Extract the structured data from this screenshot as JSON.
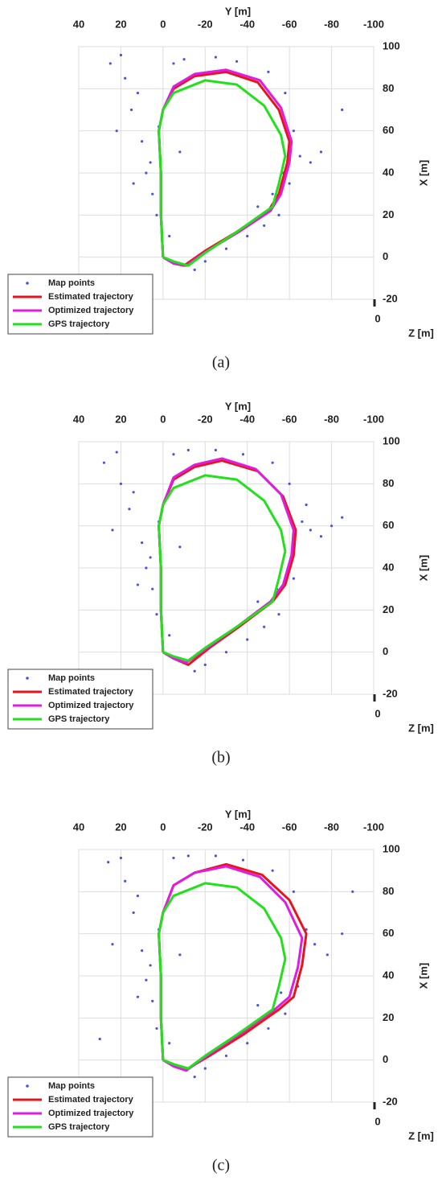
{
  "chart_data": [
    {
      "type": "line",
      "caption": "(a)",
      "xlabel": "Y [m]",
      "ylabel": "X [m]",
      "zlabel": "Z [m]",
      "xlim": [
        40,
        -100
      ],
      "xticks": [
        40,
        20,
        0,
        -20,
        -40,
        -60,
        -80,
        -100
      ],
      "ylim": [
        -20,
        100
      ],
      "yticks": [
        -20,
        0,
        20,
        40,
        60,
        80,
        100
      ],
      "zticks": [
        0
      ],
      "grid": true,
      "legend": "lower left",
      "series": [
        {
          "name": "Map points",
          "type": "scatter",
          "color": "#4a55d6",
          "x": [
            25,
            18,
            15,
            10,
            8,
            5,
            3,
            12,
            20,
            -5,
            -10,
            -25,
            -35,
            -50,
            -58,
            -62,
            -65,
            -70,
            -60,
            -55,
            -48,
            -40,
            -30,
            -20,
            -15,
            -8,
            2,
            6,
            -45,
            -75,
            -85,
            22,
            14,
            -3,
            -52,
            -57
          ],
          "values": [
            92,
            85,
            70,
            55,
            40,
            30,
            20,
            78,
            96,
            92,
            94,
            95,
            93,
            88,
            78,
            60,
            48,
            45,
            35,
            20,
            15,
            10,
            4,
            -2,
            -6,
            50,
            62,
            45,
            24,
            50,
            70,
            60,
            35,
            10,
            30,
            40
          ]
        },
        {
          "name": "Estimated trajectory",
          "type": "line",
          "color": "#e8141c",
          "x": [
            0,
            1,
            1,
            2,
            0,
            -5,
            -15,
            -30,
            -45,
            -55,
            -60,
            -59,
            -55,
            -50,
            -35,
            -20,
            -10,
            -5,
            0
          ],
          "values": [
            0,
            20,
            40,
            60,
            70,
            80,
            86,
            88,
            83,
            70,
            55,
            45,
            30,
            22,
            12,
            3,
            -4,
            -3,
            0
          ]
        },
        {
          "name": "Optimized trajectory",
          "type": "line",
          "color": "#e01ce0",
          "x": [
            0,
            1,
            1,
            2,
            0,
            -5,
            -15,
            -30,
            -46,
            -56,
            -61,
            -60,
            -56,
            -51,
            -36,
            -21,
            -11,
            -5,
            0
          ],
          "values": [
            0,
            20,
            40,
            60,
            70,
            81,
            87,
            89,
            84,
            71,
            55,
            45,
            30,
            22,
            12,
            3,
            -4,
            -3,
            0
          ]
        },
        {
          "name": "GPS trajectory",
          "type": "line",
          "color": "#22e01c",
          "x": [
            0,
            1,
            1,
            2,
            0,
            -5,
            -20,
            -35,
            -48,
            -56,
            -58,
            -55,
            -52,
            -35,
            -20,
            -12,
            -5,
            0
          ],
          "values": [
            0,
            20,
            40,
            60,
            70,
            78,
            84,
            82,
            72,
            58,
            48,
            35,
            24,
            12,
            2,
            -4,
            -2,
            0
          ]
        }
      ]
    },
    {
      "type": "line",
      "caption": "(b)",
      "xlabel": "Y [m]",
      "ylabel": "X [m]",
      "zlabel": "Z [m]",
      "xlim": [
        40,
        -100
      ],
      "xticks": [
        40,
        20,
        0,
        -20,
        -40,
        -60,
        -80,
        -100
      ],
      "ylim": [
        -20,
        100
      ],
      "yticks": [
        -20,
        0,
        20,
        40,
        60,
        80,
        100
      ],
      "zticks": [
        0
      ],
      "grid": true,
      "legend": "lower left",
      "series": [
        {
          "name": "Map points",
          "type": "scatter",
          "color": "#4a55d6",
          "x": [
            28,
            20,
            16,
            10,
            8,
            5,
            3,
            14,
            22,
            -5,
            -12,
            -25,
            -38,
            -52,
            -60,
            -66,
            -70,
            -75,
            -80,
            -62,
            -55,
            -48,
            -40,
            -30,
            -20,
            -15,
            -8,
            2,
            6,
            -45,
            -85,
            24,
            12,
            -3,
            -54,
            -68
          ],
          "values": [
            90,
            80,
            68,
            52,
            40,
            30,
            18,
            76,
            95,
            94,
            96,
            96,
            94,
            90,
            80,
            62,
            58,
            55,
            60,
            35,
            18,
            12,
            6,
            0,
            -6,
            -9,
            50,
            62,
            45,
            24,
            64,
            58,
            32,
            8,
            30,
            70
          ]
        },
        {
          "name": "Estimated trajectory",
          "type": "line",
          "color": "#e8141c",
          "x": [
            0,
            1,
            1,
            2,
            0,
            -5,
            -15,
            -28,
            -45,
            -57,
            -63,
            -62,
            -58,
            -52,
            -36,
            -22,
            -12,
            -5,
            0
          ],
          "values": [
            0,
            20,
            40,
            60,
            70,
            82,
            88,
            91,
            86,
            74,
            58,
            46,
            32,
            24,
            12,
            2,
            -6,
            -3,
            0
          ]
        },
        {
          "name": "Optimized trajectory",
          "type": "line",
          "color": "#e01ce0",
          "x": [
            0,
            1,
            1,
            2,
            0,
            -5,
            -15,
            -28,
            -44,
            -56,
            -62,
            -61,
            -57,
            -51,
            -35,
            -21,
            -11,
            -5,
            0
          ],
          "values": [
            0,
            20,
            40,
            60,
            70,
            83,
            89,
            92,
            87,
            75,
            58,
            46,
            32,
            24,
            12,
            2,
            -5,
            -3,
            0
          ]
        },
        {
          "name": "GPS trajectory",
          "type": "line",
          "color": "#22e01c",
          "x": [
            0,
            1,
            1,
            2,
            0,
            -5,
            -20,
            -35,
            -48,
            -56,
            -58,
            -55,
            -52,
            -35,
            -20,
            -12,
            -5,
            0
          ],
          "values": [
            0,
            20,
            40,
            60,
            70,
            78,
            84,
            82,
            72,
            58,
            48,
            35,
            24,
            12,
            2,
            -4,
            -2,
            0
          ]
        }
      ]
    },
    {
      "type": "line",
      "caption": "(c)",
      "xlabel": "Y [m]",
      "ylabel": "X [m]",
      "zlabel": "Z [m]",
      "xlim": [
        40,
        -100
      ],
      "xticks": [
        40,
        20,
        0,
        -20,
        -40,
        -60,
        -80,
        -100
      ],
      "ylim": [
        -20,
        100
      ],
      "yticks": [
        -20,
        0,
        20,
        40,
        60,
        80,
        100
      ],
      "zticks": [
        0
      ],
      "grid": true,
      "legend": "lower left",
      "series": [
        {
          "name": "Map points",
          "type": "scatter",
          "color": "#4a55d6",
          "x": [
            26,
            18,
            14,
            10,
            8,
            5,
            3,
            12,
            20,
            -5,
            -12,
            -25,
            -38,
            -52,
            -62,
            -68,
            -72,
            -78,
            -64,
            -58,
            -50,
            -40,
            -30,
            -20,
            -15,
            -8,
            2,
            6,
            -45,
            -85,
            24,
            12,
            -3,
            -56,
            30,
            -90
          ],
          "values": [
            94,
            85,
            70,
            52,
            38,
            28,
            15,
            78,
            96,
            96,
            97,
            97,
            95,
            90,
            80,
            62,
            55,
            50,
            35,
            22,
            15,
            8,
            2,
            -4,
            -8,
            50,
            62,
            45,
            26,
            60,
            55,
            30,
            8,
            32,
            10,
            80
          ]
        },
        {
          "name": "Estimated trajectory",
          "type": "line",
          "color": "#e8141c",
          "x": [
            0,
            1,
            1,
            2,
            0,
            -5,
            -15,
            -30,
            -47,
            -60,
            -68,
            -66,
            -62,
            -55,
            -38,
            -22,
            -12,
            -5,
            0
          ],
          "values": [
            0,
            20,
            40,
            60,
            70,
            83,
            89,
            93,
            88,
            76,
            60,
            45,
            30,
            24,
            12,
            2,
            -4,
            -2,
            0
          ]
        },
        {
          "name": "Optimized trajectory",
          "type": "line",
          "color": "#e01ce0",
          "x": [
            0,
            1,
            1,
            2,
            0,
            -5,
            -15,
            -30,
            -46,
            -58,
            -66,
            -64,
            -60,
            -53,
            -36,
            -21,
            -11,
            -5,
            0
          ],
          "values": [
            0,
            20,
            40,
            60,
            70,
            83,
            89,
            92,
            87,
            75,
            58,
            44,
            30,
            24,
            12,
            2,
            -5,
            -3,
            0
          ]
        },
        {
          "name": "GPS trajectory",
          "type": "line",
          "color": "#22e01c",
          "x": [
            0,
            1,
            1,
            2,
            0,
            -5,
            -20,
            -35,
            -48,
            -56,
            -58,
            -55,
            -52,
            -35,
            -20,
            -12,
            -5,
            0
          ],
          "values": [
            0,
            20,
            40,
            60,
            70,
            78,
            84,
            82,
            72,
            58,
            48,
            35,
            24,
            12,
            2,
            -4,
            -2,
            0
          ]
        }
      ]
    }
  ]
}
